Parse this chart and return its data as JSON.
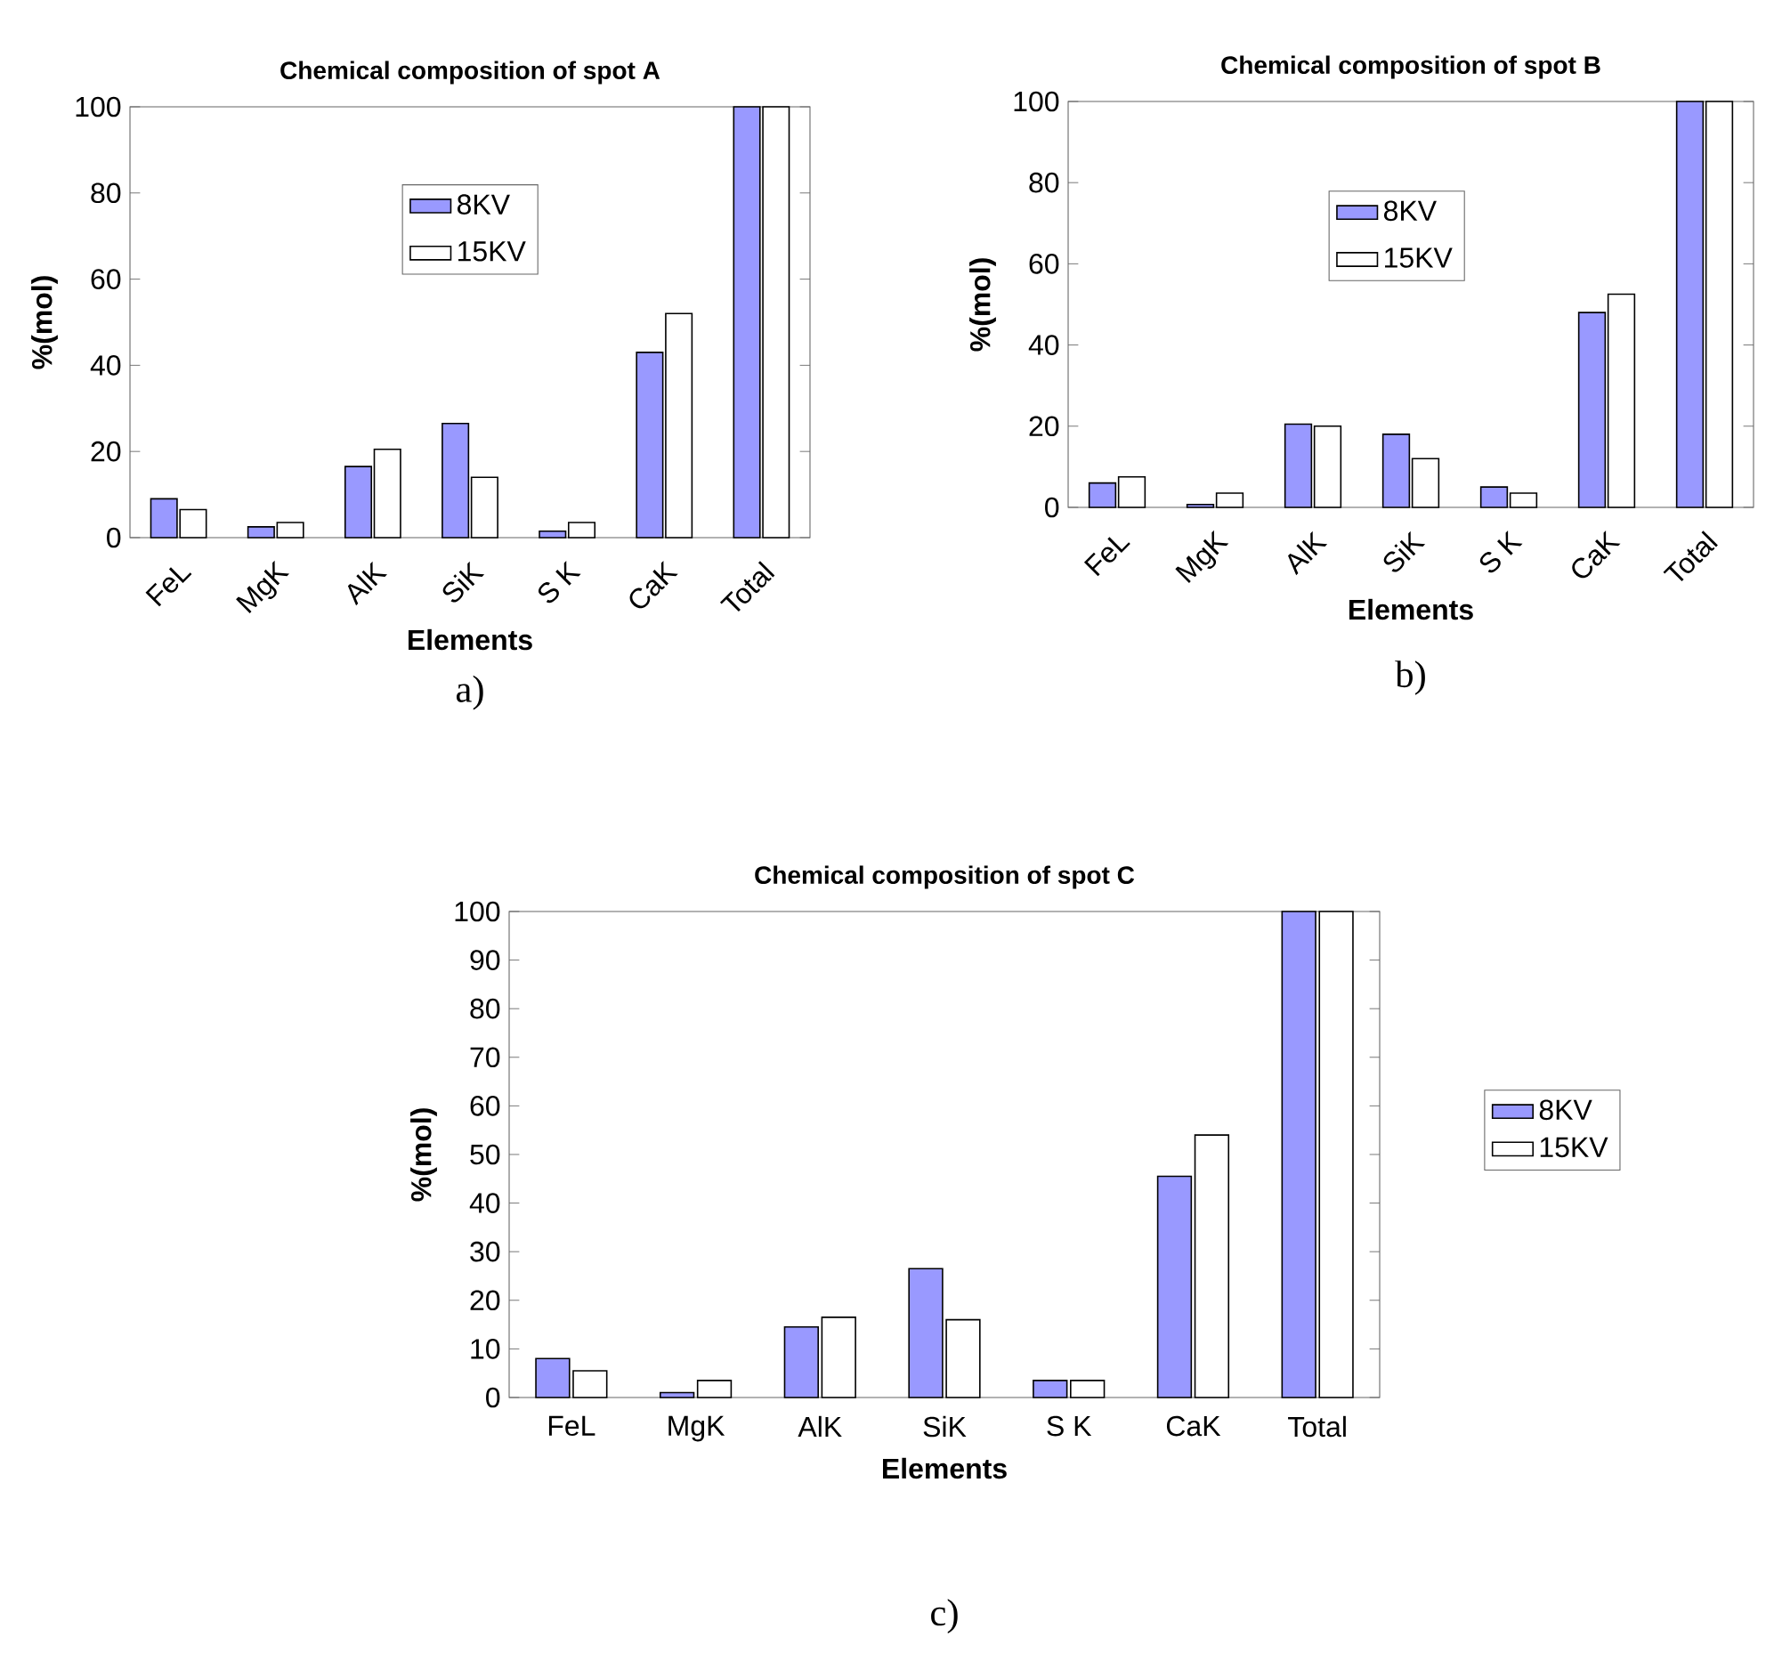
{
  "chart_data": [
    {
      "type": "bar",
      "title": "Chemical composition of spot A",
      "xlabel": "Elements",
      "ylabel": "%(mol)",
      "categories": [
        "FeL",
        "MgK",
        "AlK",
        "SiK",
        "S K",
        "CaK",
        "Total"
      ],
      "series": [
        {
          "name": "8KV",
          "color": "#9999ff",
          "values": [
            9,
            2.5,
            16.5,
            26.5,
            1.5,
            43,
            100
          ]
        },
        {
          "name": "15KV",
          "color": "#ffffff",
          "values": [
            6.5,
            3.5,
            20.5,
            14,
            3.5,
            52,
            100
          ]
        }
      ],
      "ylim": [
        0,
        100
      ],
      "yticks": [
        0,
        20,
        40,
        60,
        80,
        100
      ],
      "legend": "top",
      "grid": false,
      "annotations": [
        "a)"
      ]
    },
    {
      "type": "bar",
      "title": "Chemical composition of spot B",
      "xlabel": "Elements",
      "ylabel": "%(mol)",
      "categories": [
        "FeL",
        "MgK",
        "AlK",
        "SiK",
        "S K",
        "CaK",
        "Total"
      ],
      "series": [
        {
          "name": "8KV",
          "color": "#9999ff",
          "values": [
            6,
            0.7,
            20.5,
            18,
            5,
            48,
            100
          ]
        },
        {
          "name": "15KV",
          "color": "#ffffff",
          "values": [
            7.5,
            3.5,
            20,
            12,
            3.5,
            52.5,
            100
          ]
        }
      ],
      "ylim": [
        0,
        100
      ],
      "yticks": [
        0,
        20,
        40,
        60,
        80,
        100
      ],
      "legend": "top",
      "grid": false,
      "annotations": [
        "b)"
      ]
    },
    {
      "type": "bar",
      "title": "Chemical composition of spot C",
      "xlabel": "Elements",
      "ylabel": "%(mol)",
      "categories": [
        "FeL",
        "MgK",
        "AlK",
        "SiK",
        "S K",
        "CaK",
        "Total"
      ],
      "series": [
        {
          "name": "8KV",
          "color": "#9999ff",
          "values": [
            8,
            1,
            14.5,
            26.5,
            3.5,
            45.5,
            100
          ]
        },
        {
          "name": "15KV",
          "color": "#ffffff",
          "values": [
            5.5,
            3.5,
            16.5,
            16,
            3.5,
            54,
            100
          ]
        }
      ],
      "ylim": [
        0,
        100
      ],
      "yticks": [
        0,
        10,
        20,
        30,
        40,
        50,
        60,
        70,
        80,
        90,
        100
      ],
      "legend": "right",
      "grid": false,
      "annotations": [
        "c)"
      ]
    }
  ]
}
